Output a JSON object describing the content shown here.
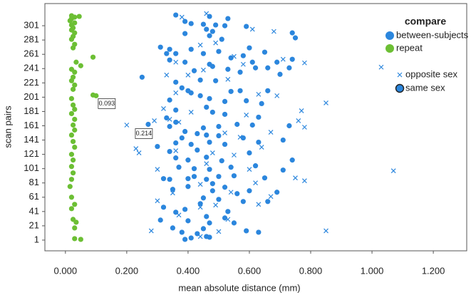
{
  "chart_data": {
    "type": "scatter",
    "x_label": "mean absolute distance (mm)",
    "y_label": "scan pairs",
    "xlim": [
      -0.067,
      1.309
    ],
    "ylim": [
      -14,
      332
    ],
    "xticks": [
      {
        "value": 0,
        "label": "0.000"
      },
      {
        "value": 0.2,
        "label": "0.200"
      },
      {
        "value": 0.4,
        "label": "0.400"
      },
      {
        "value": 0.6,
        "label": "0.600"
      },
      {
        "value": 0.8,
        "label": "0.800"
      },
      {
        "value": 1.0,
        "label": "1.000"
      },
      {
        "value": 1.2,
        "label": "1.200"
      }
    ],
    "yticks": [
      1,
      21,
      41,
      61,
      81,
      101,
      121,
      141,
      161,
      181,
      201,
      221,
      241,
      261,
      281,
      301
    ],
    "legend": {
      "title": "compare",
      "colors": [
        {
          "name": "between-subjects",
          "color": "#2b86dd"
        },
        {
          "name": "repeat",
          "color": "#6cbf34"
        }
      ],
      "markers": [
        {
          "name": "opposite sex",
          "marker": "cross"
        },
        {
          "name": "same sex",
          "marker": "circle"
        }
      ]
    },
    "annotations": [
      {
        "text": "0.093",
        "x": 0.093,
        "y": 192
      },
      {
        "text": "0.214",
        "x": 0.214,
        "y": 150
      }
    ],
    "series": [
      {
        "color": "#6cbf34",
        "marker": "circle",
        "x": [
          0.02,
          0.03,
          0.045,
          0.02,
          0.015,
          0.03,
          0.02,
          0.025,
          0.02,
          0.03,
          0.025,
          0.02,
          0.03,
          0.025,
          0.09,
          0.035,
          0.05,
          0.02,
          0.03,
          0.025,
          0.02,
          0.03,
          0.025,
          0.09,
          0.1,
          0.02,
          0.025,
          0.03,
          0.02,
          0.03,
          0.025,
          0.03,
          0.02,
          0.025,
          0.03,
          0.02,
          0.025,
          0.02,
          0.025,
          0.02,
          0.015,
          0.02,
          0.03,
          0.02,
          0.025,
          0.035,
          0.03,
          0.03,
          0.05
        ],
        "y": [
          315,
          313,
          314,
          311,
          308,
          305,
          302,
          298,
          295,
          291,
          286,
          282,
          275,
          270,
          257,
          250,
          245,
          240,
          236,
          229,
          224,
          218,
          212,
          204,
          203,
          199,
          190,
          184,
          178,
          170,
          162,
          155,
          148,
          139,
          131,
          121,
          113,
          104,
          95,
          86,
          76,
          61,
          51,
          45,
          30,
          26,
          18,
          3,
          2
        ]
      },
      {
        "color": "#2b86dd",
        "marker": "cross",
        "x": [
          0.46,
          0.38,
          0.61,
          0.68,
          0.49,
          0.44,
          0.55,
          0.71,
          0.36,
          0.78,
          1.03,
          0.58,
          0.45,
          0.33,
          0.4,
          0.53,
          0.36,
          0.63,
          0.69,
          0.85,
          0.32,
          0.41,
          0.77,
          0.59,
          0.34,
          0.2,
          0.37,
          0.76,
          0.78,
          0.29,
          0.52,
          0.67,
          0.57,
          0.23,
          0.36,
          0.48,
          0.64,
          0.24,
          0.55,
          0.46,
          0.3,
          0.6,
          1.07,
          0.75,
          0.78,
          0.44,
          0.62,
          0.35,
          0.54,
          0.67,
          0.3,
          0.49,
          0.63,
          0.44,
          0.37,
          0.53,
          0.28,
          0.5,
          0.85,
          0.44
        ],
        "y": [
          318,
          313,
          296,
          293,
          277,
          274,
          258,
          254,
          250,
          249,
          243,
          247,
          239,
          232,
          232,
          226,
          207,
          205,
          203,
          193,
          185,
          180,
          182,
          176,
          170,
          162,
          166,
          168,
          159,
          168,
          151,
          152,
          145,
          129,
          126,
          123,
          131,
          123,
          120,
          108,
          100,
          100,
          98,
          88,
          84,
          79,
          81,
          67,
          68,
          62,
          56,
          50,
          51,
          47,
          36,
          30,
          14,
          13,
          14,
          6
        ]
      },
      {
        "color": "#2b86dd",
        "marker": "circle",
        "x": [
          0.36,
          0.47,
          0.53,
          0.39,
          0.41,
          0.45,
          0.49,
          0.52,
          0.59,
          0.46,
          0.48,
          0.74,
          0.39,
          0.47,
          0.75,
          0.51,
          0.31,
          0.34,
          0.41,
          0.6,
          0.33,
          0.36,
          0.45,
          0.5,
          0.65,
          0.58,
          0.54,
          0.74,
          0.34,
          0.39,
          0.47,
          0.61,
          0.69,
          0.48,
          0.62,
          0.66,
          0.73,
          0.25,
          0.42,
          0.53,
          0.57,
          0.7,
          0.44,
          0.49,
          0.36,
          0.38,
          0.4,
          0.41,
          0.54,
          0.57,
          0.66,
          0.44,
          0.47,
          0.34,
          0.52,
          0.59,
          0.64,
          0.46,
          0.36,
          0.48,
          0.52,
          0.33,
          0.63,
          0.36,
          0.27,
          0.34,
          0.45,
          0.5,
          0.56,
          0.61,
          0.73,
          0.39,
          0.43,
          0.46,
          0.5,
          0.38,
          0.58,
          0.3,
          0.36,
          0.41,
          0.47,
          0.52,
          0.63,
          0.71,
          0.43,
          0.34,
          0.6,
          0.36,
          0.4,
          0.46,
          0.74,
          0.51,
          0.37,
          0.42,
          0.47,
          0.54,
          0.62,
          0.71,
          0.32,
          0.34,
          0.4,
          0.42,
          0.46,
          0.5,
          0.55,
          0.65,
          0.48,
          0.52,
          0.4,
          0.35,
          0.48,
          0.56,
          0.6,
          0.69,
          0.45,
          0.5,
          0.58,
          0.66,
          0.44,
          0.32,
          0.39,
          0.36,
          0.53,
          0.46,
          0.52,
          0.31,
          0.4,
          0.47,
          0.55,
          0.35,
          0.45,
          0.38,
          0.43,
          0.59,
          0.63,
          0.46,
          0.47,
          0.41,
          0.39
        ],
        "y": [
          316,
          314,
          311,
          307,
          304,
          303,
          302,
          301,
          300,
          296,
          293,
          291,
          290,
          287,
          284,
          282,
          271,
          268,
          268,
          270,
          262,
          262,
          262,
          265,
          264,
          259,
          256,
          254,
          253,
          250,
          247,
          250,
          250,
          244,
          242,
          242,
          242,
          229,
          238,
          240,
          236,
          233,
          225,
          224,
          222,
          214,
          210,
          207,
          209,
          210,
          210,
          203,
          199,
          197,
          195,
          196,
          192,
          187,
          183,
          180,
          177,
          172,
          173,
          166,
          163,
          160,
          158,
          160,
          163,
          162,
          161,
          153,
          150,
          148,
          147,
          144,
          144,
          132,
          137,
          135,
          138,
          135,
          138,
          141,
          127,
          125,
          123,
          116,
          113,
          117,
          113,
          112,
          103,
          101,
          100,
          103,
          105,
          99,
          87,
          86,
          87,
          90,
          86,
          90,
          91,
          88,
          80,
          75,
          76,
          72,
          70,
          66,
          70,
          68,
          60,
          58,
          55,
          55,
          52,
          47,
          44,
          40,
          41,
          34,
          32,
          29,
          28,
          25,
          25,
          18,
          17,
          12,
          10,
          14,
          12,
          6,
          5,
          4,
          2
        ]
      }
    ]
  }
}
